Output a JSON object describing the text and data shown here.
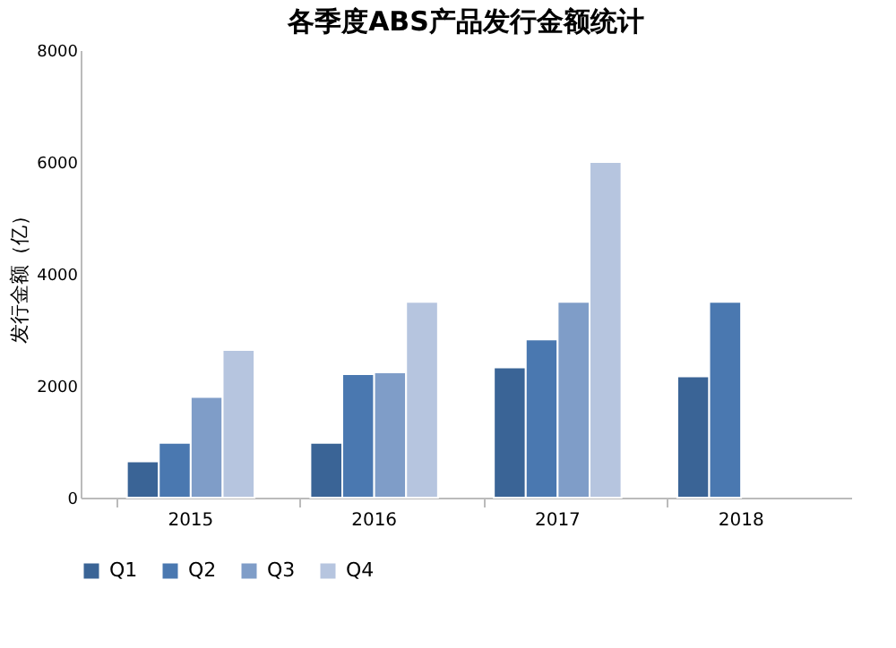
{
  "chart_data": {
    "type": "bar",
    "title": "各季度ABS产品发行金额统计",
    "ylabel": "发行金额（亿）",
    "categories": [
      "2015",
      "2016",
      "2017",
      "2018"
    ],
    "series": [
      {
        "name": "Q1",
        "color": "#3a6496",
        "values": [
          650,
          980,
          2330,
          2170
        ]
      },
      {
        "name": "Q2",
        "color": "#4a78b0",
        "values": [
          980,
          2210,
          2830,
          3500
        ]
      },
      {
        "name": "Q3",
        "color": "#7f9dc8",
        "values": [
          1800,
          2240,
          3500,
          null
        ]
      },
      {
        "name": "Q4",
        "color": "#b6c5df",
        "values": [
          2640,
          3500,
          6000,
          null
        ]
      }
    ],
    "ylim": [
      0,
      8000
    ],
    "yticks": [
      0,
      2000,
      4000,
      6000,
      8000
    ],
    "grid": false,
    "legend": "bottom"
  }
}
